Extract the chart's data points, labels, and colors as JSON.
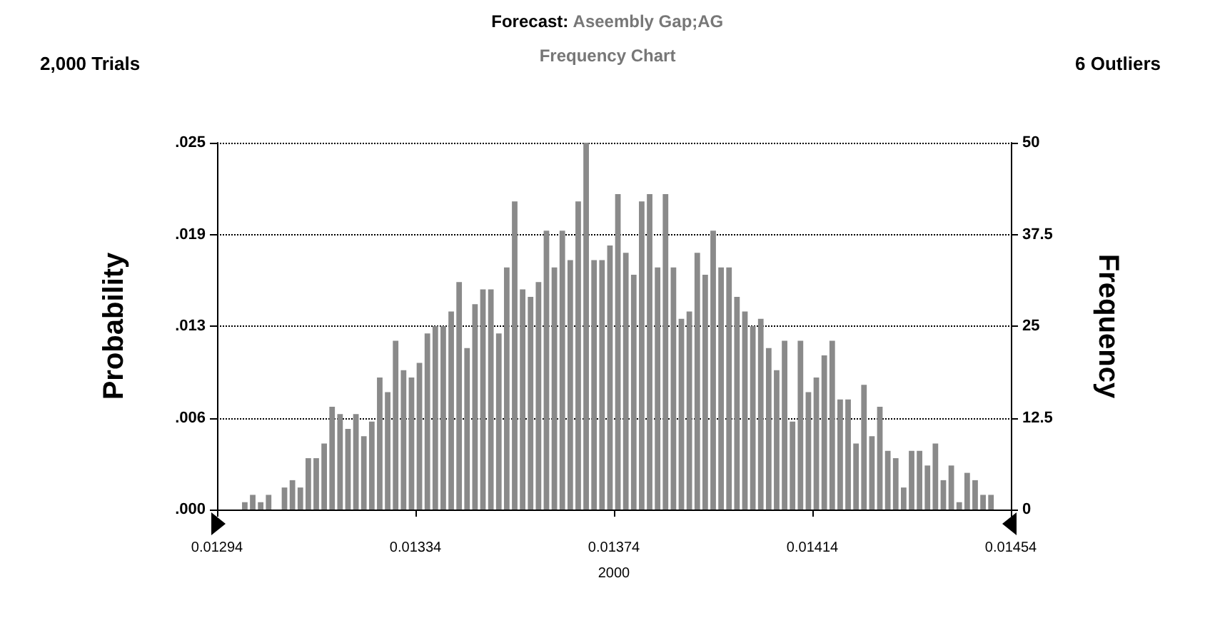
{
  "chart_data": {
    "type": "histogram",
    "title": "Forecast: Aseembly Gap;AG",
    "subtitle": "Frequency Chart",
    "annotations": [
      "2,000 Trials",
      "6 Outliers"
    ],
    "xlabel": "2000",
    "ylabel": "Probability",
    "y2label": "Frequency",
    "bins": [
      0.01294,
      0.012956,
      0.012972,
      0.012988,
      0.013004,
      0.01302,
      0.013036,
      0.013052,
      0.013068,
      0.013084,
      0.0131,
      0.013116,
      0.013132,
      0.013148,
      0.013164,
      0.01318,
      0.013196,
      0.013212,
      0.013228,
      0.013244,
      0.01326,
      0.013276,
      0.013292,
      0.013308,
      0.013324,
      0.01334,
      0.013356,
      0.013372,
      0.013388,
      0.013404,
      0.01342,
      0.013436,
      0.013452,
      0.013468,
      0.013484,
      0.0135,
      0.013516,
      0.013532,
      0.013548,
      0.013564,
      0.01358,
      0.013596,
      0.013612,
      0.013628,
      0.013644,
      0.01366,
      0.013676,
      0.013692,
      0.013708,
      0.013724,
      0.01374,
      0.013756,
      0.013772,
      0.013788,
      0.013804,
      0.01382,
      0.013836,
      0.013852,
      0.013868,
      0.013884,
      0.0139,
      0.013916,
      0.013932,
      0.013948,
      0.013964,
      0.01398,
      0.013996,
      0.014012,
      0.014028,
      0.014044,
      0.01406,
      0.014076,
      0.014092,
      0.014108,
      0.014124,
      0.01414,
      0.014156,
      0.014172,
      0.014188,
      0.014204,
      0.01422,
      0.014236,
      0.014252,
      0.014268,
      0.014284,
      0.0143,
      0.014316,
      0.014332,
      0.014348,
      0.014364,
      0.01438,
      0.014396,
      0.014412,
      0.014428,
      0.014444,
      0.01446,
      0.014476,
      0.014492,
      0.014508,
      0.014524,
      0.01454
    ],
    "series": [
      {
        "axis": "y2",
        "color": "#8a8a8a",
        "values": [
          0,
          0,
          0,
          1,
          2,
          1,
          2,
          0,
          3,
          4,
          3,
          7,
          7,
          9,
          14,
          13,
          11,
          13,
          10,
          12,
          18,
          16,
          23,
          19,
          18,
          20,
          24,
          25,
          25,
          27,
          31,
          22,
          28,
          30,
          30,
          24,
          33,
          42,
          30,
          29,
          31,
          38,
          33,
          38,
          34,
          42,
          50,
          34,
          34,
          36,
          43,
          35,
          32,
          42,
          43,
          33,
          43,
          33,
          26,
          27,
          35,
          32,
          38,
          33,
          33,
          29,
          27,
          25,
          26,
          22,
          19,
          23,
          12,
          23,
          16,
          18,
          21,
          23,
          15,
          15,
          9,
          17,
          10,
          14,
          8,
          7,
          3,
          8,
          8,
          6,
          9,
          4,
          6,
          1,
          5,
          4,
          2,
          2,
          0,
          0
        ]
      }
    ],
    "xlim": [
      0.01294,
      0.01454
    ],
    "xticks": [
      0.01294,
      0.01334,
      0.01374,
      0.01414,
      0.01454
    ],
    "ylim": [
      0,
      0.025
    ],
    "yticks": [
      {
        "value": 0,
        "label": ".000"
      },
      {
        "value": 0.00625,
        "label": ".006"
      },
      {
        "value": 0.0125,
        "label": ".013"
      },
      {
        "value": 0.01875,
        "label": ".019"
      },
      {
        "value": 0.025,
        "label": ".025"
      }
    ],
    "y2lim": [
      0,
      50
    ],
    "y2ticks": [
      0,
      12.5,
      25,
      37.5,
      50
    ],
    "grid": "y"
  }
}
